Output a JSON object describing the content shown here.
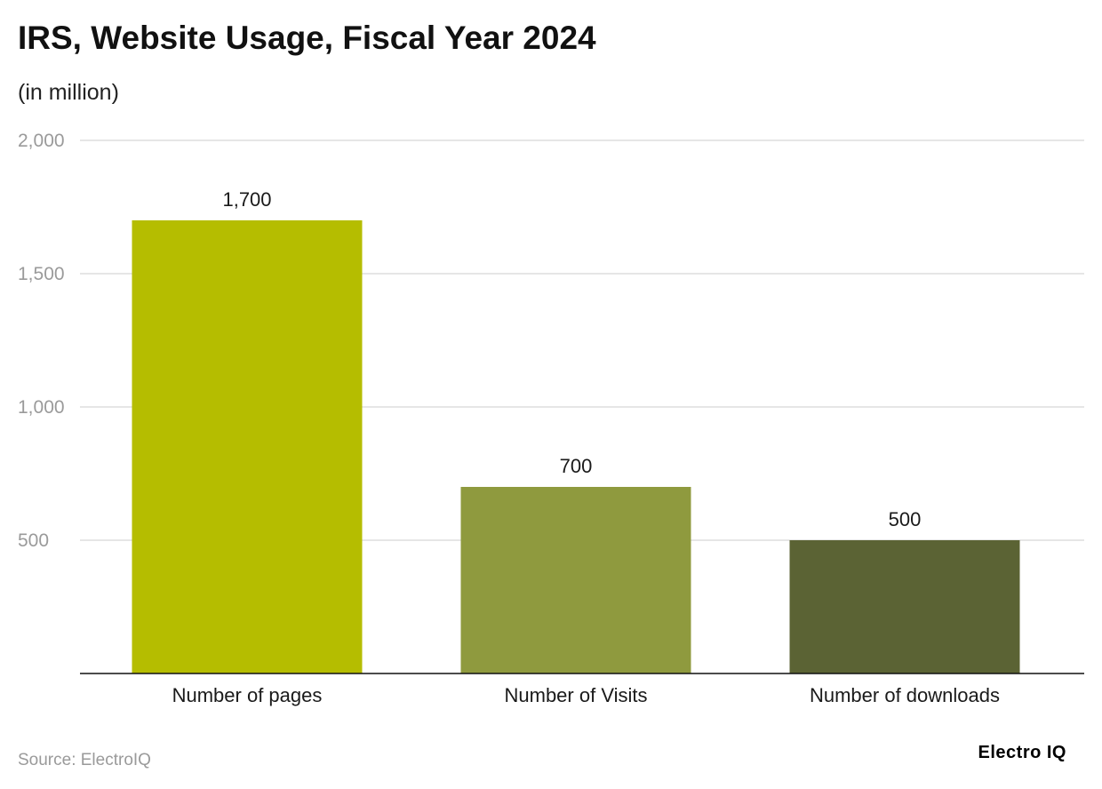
{
  "chart_data": {
    "type": "bar",
    "title": "IRS, Website Usage, Fiscal Year 2024",
    "subtitle": "(in million)",
    "categories": [
      "Number of pages",
      "Number of Visits",
      "Number of downloads"
    ],
    "values": [
      1700,
      700,
      500
    ],
    "value_labels": [
      "1,700",
      "700",
      "500"
    ],
    "colors": [
      "#b5bd00",
      "#8f9a3e",
      "#5b6334"
    ],
    "ylim": [
      0,
      2000
    ],
    "yticks": [
      500,
      1000,
      1500,
      2000
    ],
    "ytick_labels": [
      "500",
      "1,000",
      "1,500",
      "2,000"
    ],
    "grid": true,
    "xlabel": "",
    "ylabel": ""
  },
  "footer": {
    "source": "Source: ElectroIQ",
    "brand": "Electro IQ"
  }
}
